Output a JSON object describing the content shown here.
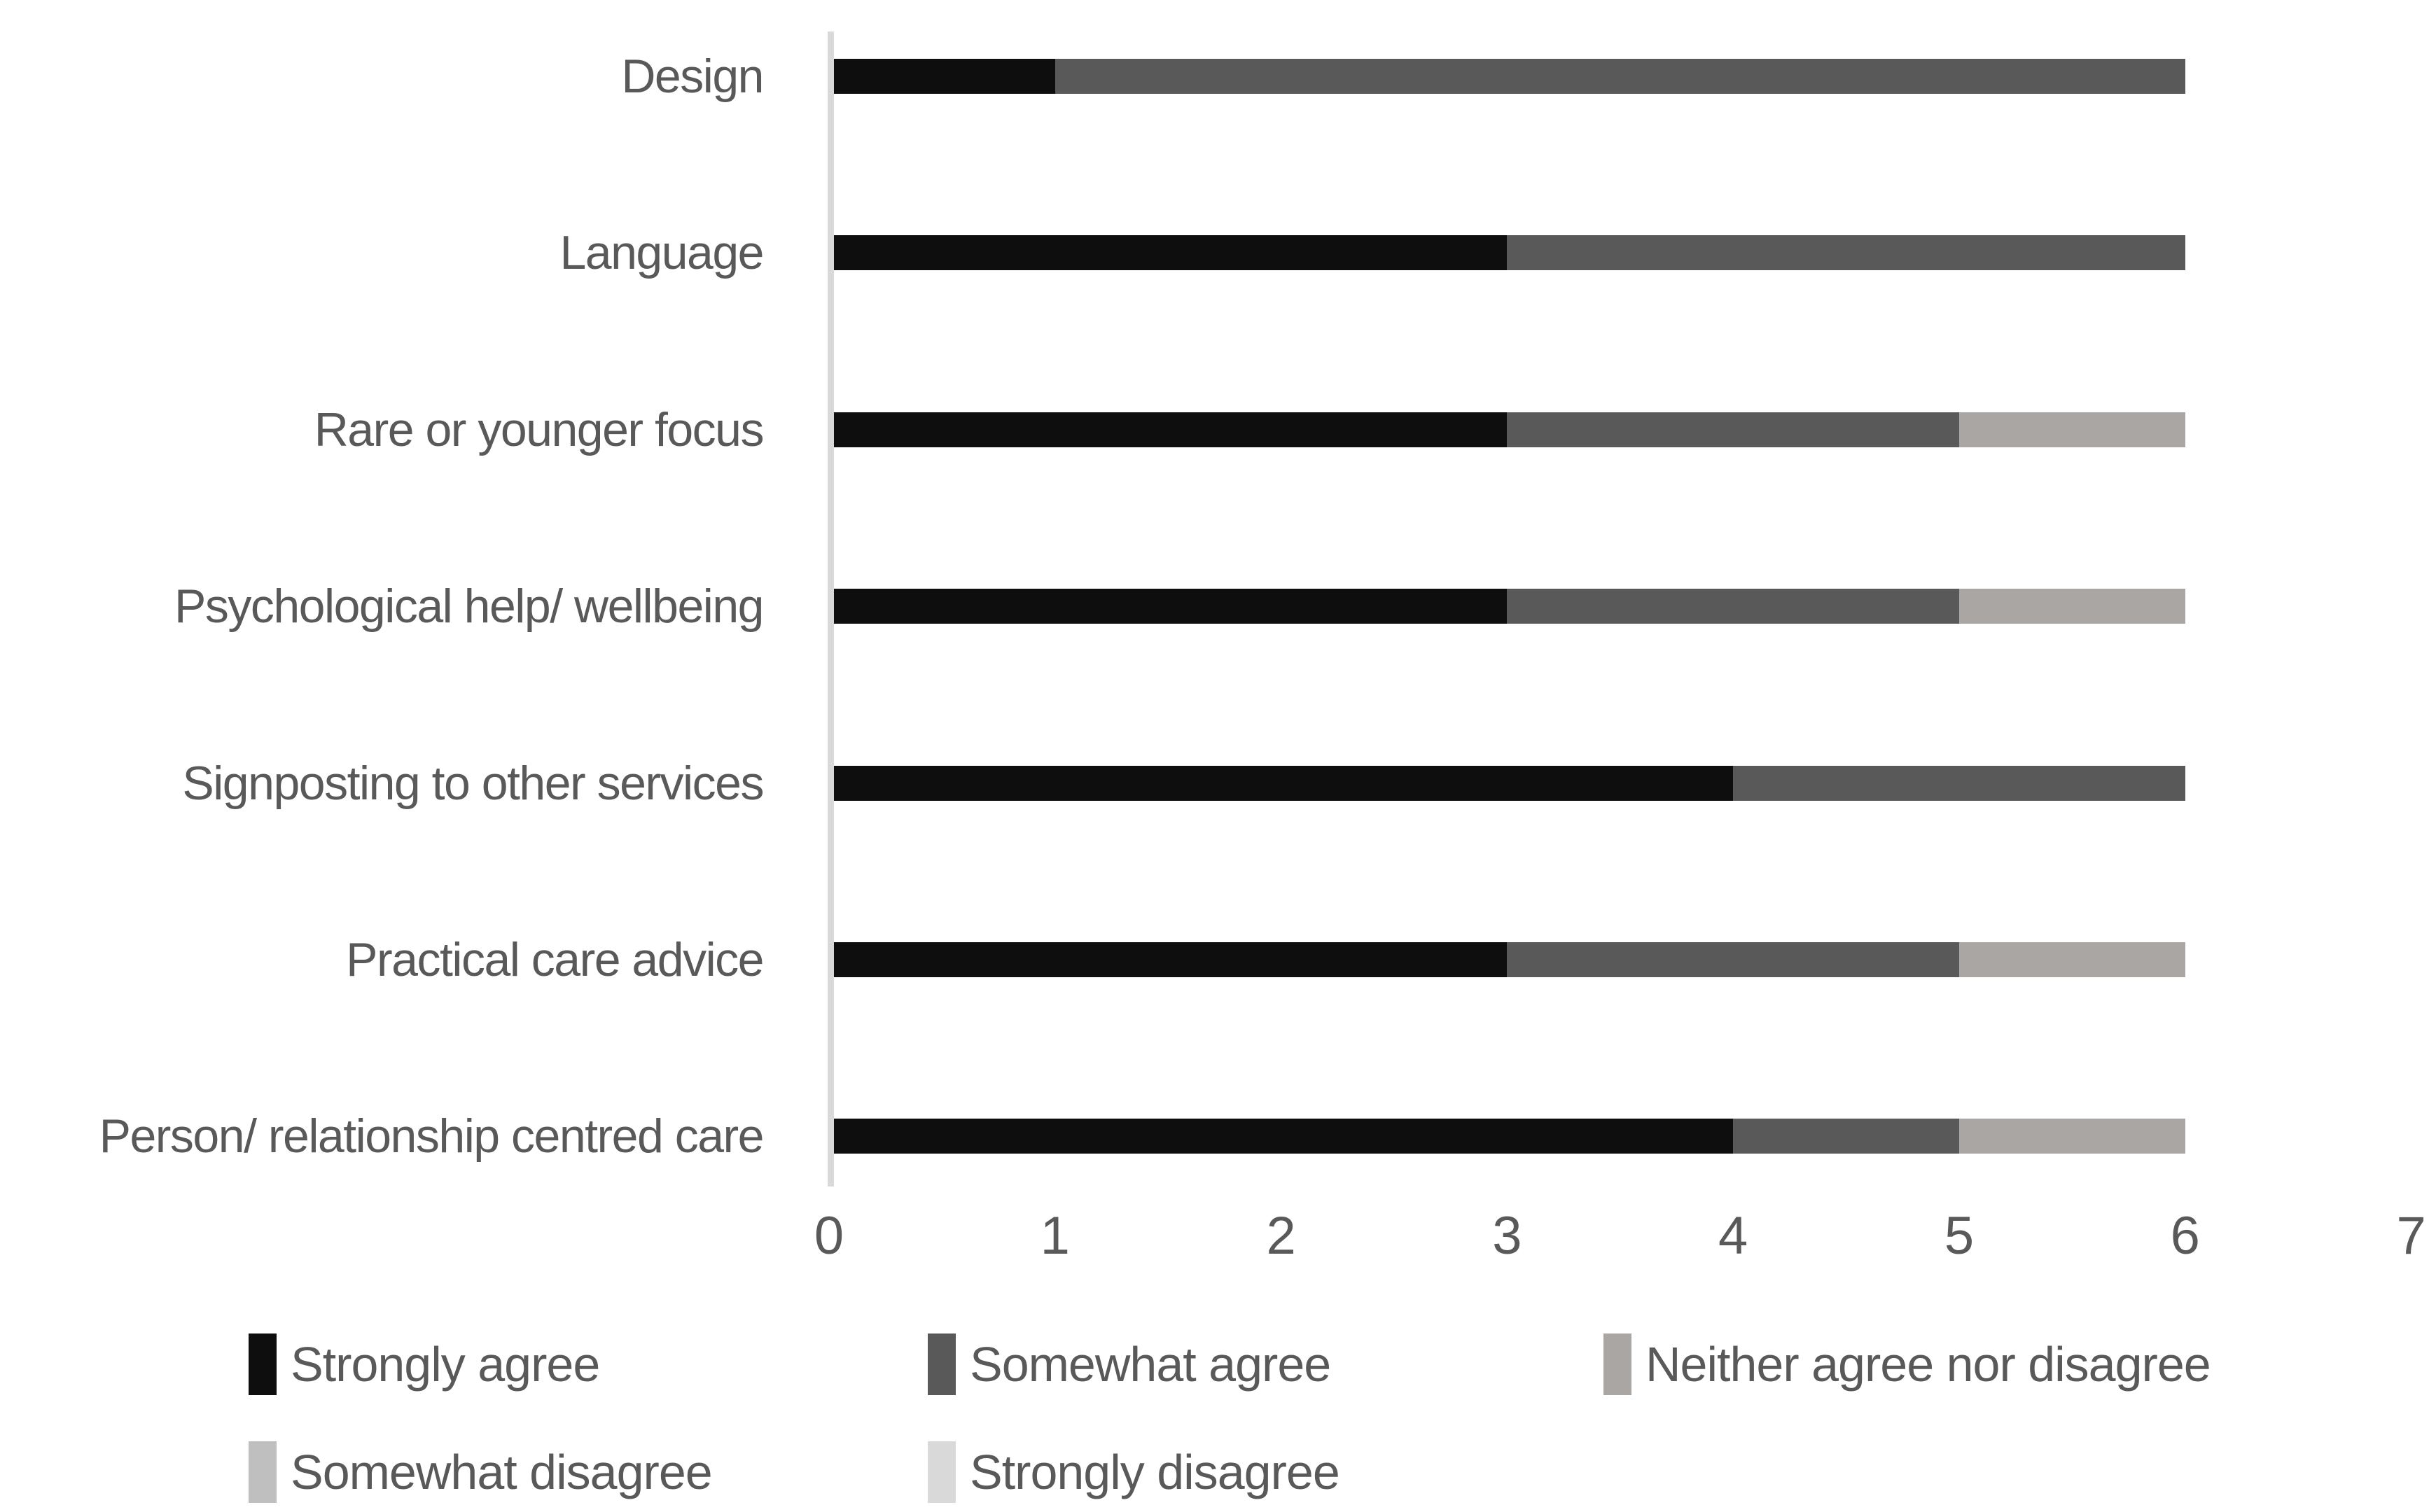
{
  "chart_data": {
    "type": "bar",
    "orientation": "horizontal",
    "stacked": true,
    "title": "",
    "xlabel": "",
    "ylabel": "",
    "grid": false,
    "categories": [
      "Design",
      "Language",
      "Rare or younger focus",
      "Psychological help/ wellbeing",
      "Signposting to other services",
      "Practical care advice",
      "Person/ relationship centred care"
    ],
    "series": [
      {
        "name": "Strongly agree",
        "color": "#0e0e0e",
        "values": [
          1,
          3,
          3,
          3,
          4,
          3,
          4
        ]
      },
      {
        "name": "Somewhat agree",
        "color": "#595959",
        "values": [
          5,
          3,
          2,
          2,
          2,
          2,
          1
        ]
      },
      {
        "name": "Neither agree nor disagree",
        "color": "#a9a6a4",
        "values": [
          0,
          0,
          1,
          1,
          0,
          1,
          1
        ]
      },
      {
        "name": "Somewhat disagree",
        "color": "#bfbfbf",
        "values": [
          0,
          0,
          0,
          0,
          0,
          0,
          0
        ]
      },
      {
        "name": "Strongly disagree",
        "color": "#d9d9d9",
        "values": [
          0,
          0,
          0,
          0,
          0,
          0,
          0
        ]
      }
    ],
    "x_axis": {
      "min": 0,
      "max": 7,
      "ticks": [
        "0",
        "1",
        "2",
        "3",
        "4",
        "5",
        "6",
        "7"
      ]
    },
    "legend": {
      "position": "bottom",
      "rows": [
        [
          "Strongly agree",
          "Somewhat agree",
          "Neither agree nor disagree"
        ],
        [
          "Somewhat disagree",
          "Strongly disagree"
        ]
      ]
    }
  },
  "colors": {
    "background": "#ffffff",
    "axis_line": "#d9d9d9",
    "text": "#595959"
  }
}
